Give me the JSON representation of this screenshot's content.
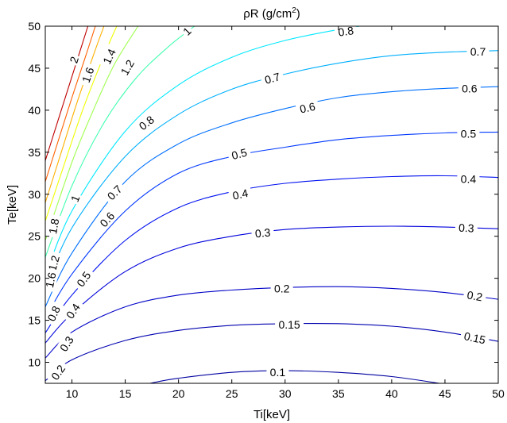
{
  "chart_data": {
    "type": "contour",
    "title": "ρR (g/cm",
    "title_sup": "2",
    "title_tail": ")",
    "xlabel": "Ti[keV]",
    "ylabel": "Te[keV]",
    "xlim": [
      7.5,
      50
    ],
    "ylim": [
      7.5,
      50
    ],
    "xticks": [
      10,
      15,
      20,
      25,
      30,
      35,
      40,
      45,
      50
    ],
    "yticks": [
      10,
      15,
      20,
      25,
      30,
      35,
      40,
      45,
      50
    ],
    "grid": false,
    "contours": [
      {
        "level": "0.1",
        "color": "#0000a0",
        "points": [
          [
            17.3,
            7.5
          ],
          [
            20,
            8.1
          ],
          [
            25,
            8.8
          ],
          [
            30,
            9.0
          ],
          [
            35,
            8.8
          ],
          [
            40,
            8.3
          ],
          [
            44.5,
            7.5
          ]
        ],
        "labels": [
          {
            "x": 29.3,
            "y": 8.8,
            "rot": 0
          }
        ]
      },
      {
        "level": "0.15",
        "color": "#0000b0",
        "points": [
          [
            7.5,
            7.8
          ],
          [
            10,
            10.3
          ],
          [
            15,
            12.6
          ],
          [
            20,
            13.8
          ],
          [
            25,
            14.4
          ],
          [
            30,
            14.6
          ],
          [
            35,
            14.6
          ],
          [
            40,
            14.3
          ],
          [
            45,
            13.6
          ],
          [
            50,
            12.5
          ]
        ],
        "labels": [
          {
            "x": 30.4,
            "y": 14.5,
            "rot": 0
          },
          {
            "x": 47.8,
            "y": 12.9,
            "rot": 12
          }
        ]
      },
      {
        "level": "0.2",
        "color": "#0000c8",
        "points": [
          [
            7.5,
            10.5
          ],
          [
            10,
            13.6
          ],
          [
            15,
            16.6
          ],
          [
            20,
            18.0
          ],
          [
            25,
            18.6
          ],
          [
            30,
            18.9
          ],
          [
            35,
            19.0
          ],
          [
            40,
            18.8
          ],
          [
            45,
            18.3
          ],
          [
            50,
            17.5
          ]
        ],
        "labels": [
          {
            "x": 29.7,
            "y": 18.8,
            "rot": 0
          },
          {
            "x": 47.8,
            "y": 17.9,
            "rot": 10
          },
          {
            "x": 8.7,
            "y": 8.8,
            "rot": -55
          }
        ]
      },
      {
        "level": "0.3",
        "color": "#0000dc",
        "points": [
          [
            7.5,
            12.3
          ],
          [
            10,
            15.8
          ],
          [
            15,
            20.8
          ],
          [
            20,
            23.6
          ],
          [
            25,
            25.0
          ],
          [
            30,
            25.8
          ],
          [
            35,
            26.1
          ],
          [
            40,
            26.2
          ],
          [
            45,
            26.1
          ],
          [
            50,
            25.9
          ]
        ],
        "labels": [
          {
            "x": 27.9,
            "y": 25.4,
            "rot": -5
          },
          {
            "x": 47.0,
            "y": 26.0,
            "rot": 3
          },
          {
            "x": 9.5,
            "y": 12.2,
            "rot": -58
          }
        ]
      },
      {
        "level": "0.4",
        "color": "#0010f0",
        "points": [
          [
            7.5,
            13.5
          ],
          [
            10,
            18.0
          ],
          [
            15,
            24.5
          ],
          [
            20,
            28.4
          ],
          [
            25,
            30.3
          ],
          [
            30,
            31.3
          ],
          [
            35,
            31.8
          ],
          [
            40,
            32.1
          ],
          [
            45,
            32.2
          ],
          [
            50,
            32.0
          ]
        ],
        "labels": [
          {
            "x": 25.8,
            "y": 30.0,
            "rot": -12
          },
          {
            "x": 47.2,
            "y": 31.8,
            "rot": 0
          },
          {
            "x": 10.1,
            "y": 16.1,
            "rot": -56
          }
        ]
      },
      {
        "level": "0.5",
        "color": "#0038ff",
        "points": [
          [
            7.5,
            15.2
          ],
          [
            10,
            20.5
          ],
          [
            15,
            28.0
          ],
          [
            20,
            32.5
          ],
          [
            25,
            34.5
          ],
          [
            30,
            35.6
          ],
          [
            35,
            36.5
          ],
          [
            40,
            37.0
          ],
          [
            45,
            37.3
          ],
          [
            50,
            37.4
          ]
        ],
        "labels": [
          {
            "x": 25.7,
            "y": 34.8,
            "rot": -15
          },
          {
            "x": 47.2,
            "y": 37.2,
            "rot": 0
          },
          {
            "x": 11.1,
            "y": 19.9,
            "rot": -55
          }
        ]
      },
      {
        "level": "0.6",
        "color": "#0070ff",
        "points": [
          [
            7.5,
            16.6
          ],
          [
            10,
            23.0
          ],
          [
            15,
            31.5
          ],
          [
            20,
            36.0
          ],
          [
            25,
            38.5
          ],
          [
            30,
            40.2
          ],
          [
            35,
            41.5
          ],
          [
            40,
            42.2
          ],
          [
            45,
            42.6
          ],
          [
            50,
            42.8
          ]
        ],
        "labels": [
          {
            "x": 32.1,
            "y": 40.3,
            "rot": -12
          },
          {
            "x": 47.3,
            "y": 42.6,
            "rot": 0
          },
          {
            "x": 13.3,
            "y": 27.0,
            "rot": -48
          }
        ]
      },
      {
        "level": "0.7",
        "color": "#00b0ff",
        "points": [
          [
            7.5,
            18.8
          ],
          [
            10,
            26.0
          ],
          [
            15,
            34.5
          ],
          [
            20,
            39.5
          ],
          [
            25,
            42.5
          ],
          [
            30,
            44.3
          ],
          [
            35,
            45.6
          ],
          [
            40,
            46.5
          ],
          [
            45,
            46.9
          ],
          [
            50,
            47.1
          ]
        ],
        "labels": [
          {
            "x": 28.8,
            "y": 43.8,
            "rot": -15
          },
          {
            "x": 48.1,
            "y": 47.0,
            "rot": 0
          },
          {
            "x": 14.0,
            "y": 30.2,
            "rot": -45
          }
        ]
      },
      {
        "level": "0.8",
        "color": "#00e8ff",
        "points": [
          [
            7.5,
            20.3
          ],
          [
            10,
            28.0
          ],
          [
            15,
            37.5
          ],
          [
            20,
            43.0
          ],
          [
            25,
            46.3
          ],
          [
            30,
            48.3
          ],
          [
            35,
            49.6
          ],
          [
            37,
            50
          ]
        ],
        "labels": [
          {
            "x": 35.7,
            "y": 49.4,
            "rot": -8
          },
          {
            "x": 17.0,
            "y": 38.5,
            "rot": -38
          },
          {
            "x": 8.3,
            "y": 15.8,
            "rot": -65
          }
        ]
      },
      {
        "level": "1",
        "color": "#40ffb0",
        "points": [
          [
            7.5,
            22.5
          ],
          [
            10,
            31.0
          ],
          [
            13,
            38.5
          ],
          [
            16,
            43.8
          ],
          [
            19,
            47.5
          ],
          [
            21.5,
            50
          ]
        ],
        "labels": [
          {
            "x": 20.8,
            "y": 49.4,
            "rot": -45
          },
          {
            "x": 10.3,
            "y": 29.5,
            "rot": -68
          }
        ]
      },
      {
        "level": "1.2",
        "color": "#a0ff50",
        "points": [
          [
            7.5,
            24.5
          ],
          [
            10,
            33.8
          ],
          [
            12,
            40.0
          ],
          [
            14,
            45.5
          ],
          [
            16.2,
            50
          ]
        ],
        "labels": [
          {
            "x": 15.2,
            "y": 45.1,
            "rot": -60
          },
          {
            "x": 8.3,
            "y": 21.8,
            "rot": -75
          }
        ]
      },
      {
        "level": "1.4",
        "color": "#f0ff00",
        "points": [
          [
            7.5,
            26.8
          ],
          [
            9,
            32.5
          ],
          [
            11,
            40.0
          ],
          [
            13,
            46.5
          ],
          [
            14.2,
            50
          ]
        ],
        "labels": [
          {
            "x": 13.5,
            "y": 46.4,
            "rot": -65
          }
        ]
      },
      {
        "level": "1.6",
        "color": "#ffb000",
        "points": [
          [
            7.5,
            29.0
          ],
          [
            9,
            35.0
          ],
          [
            10.5,
            41.0
          ],
          [
            12,
            46.5
          ],
          [
            13.0,
            50
          ]
        ],
        "labels": [
          {
            "x": 11.5,
            "y": 44.2,
            "rot": -70
          },
          {
            "x": 8.0,
            "y": 19.8,
            "rot": -78
          }
        ]
      },
      {
        "level": "1.8",
        "color": "#ff6000",
        "points": [
          [
            7.5,
            31.5
          ],
          [
            8.5,
            35.5
          ],
          [
            10,
            41.5
          ],
          [
            11.3,
            46.5
          ],
          [
            12.2,
            50
          ]
        ],
        "labels": [
          {
            "x": 8.3,
            "y": 26.2,
            "rot": -80
          }
        ]
      },
      {
        "level": "2",
        "color": "#c00000",
        "points": [
          [
            7.5,
            34.0
          ],
          [
            8.5,
            38.0
          ],
          [
            9.5,
            42.0
          ],
          [
            10.5,
            46.0
          ],
          [
            11.5,
            50
          ]
        ],
        "labels": [
          {
            "x": 10.2,
            "y": 46.0,
            "rot": -72
          }
        ]
      }
    ]
  }
}
